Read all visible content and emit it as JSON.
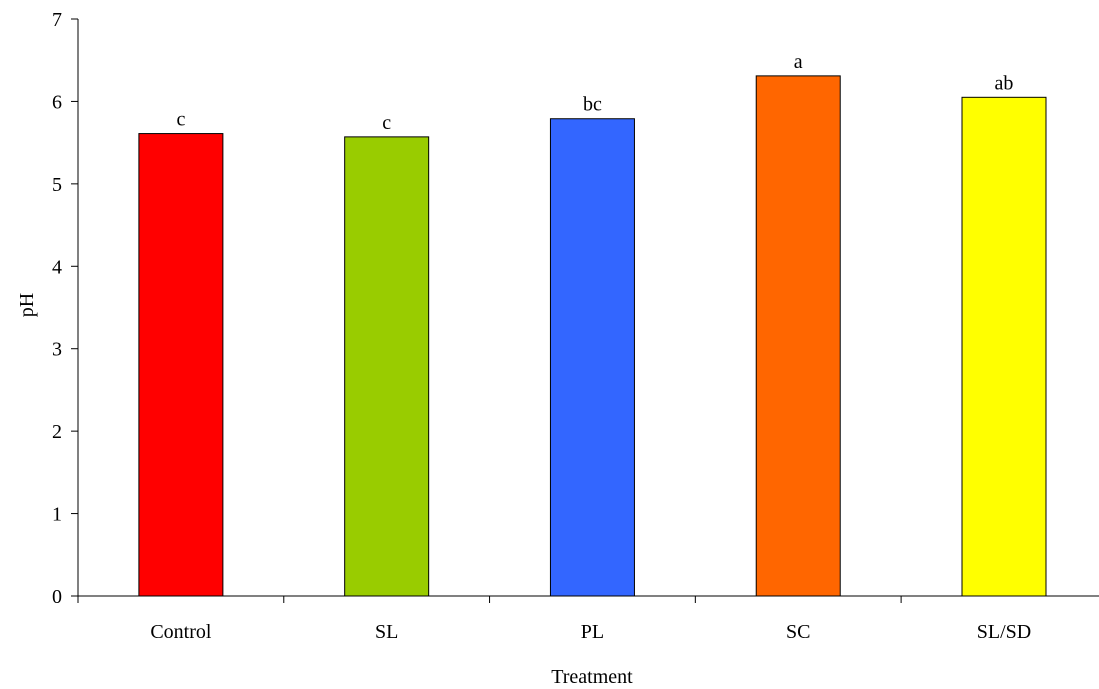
{
  "chart_data": {
    "type": "bar",
    "title": "",
    "xlabel": "Treatment",
    "ylabel": "pH",
    "ylim": [
      0,
      7
    ],
    "yticks": [
      "0",
      "1",
      "2",
      "3",
      "4",
      "5",
      "6",
      "7"
    ],
    "grid": false,
    "legend": "none",
    "categories": [
      "Control",
      "SL",
      "PL",
      "SC",
      "SL/SD"
    ],
    "values": [
      5.61,
      5.57,
      5.79,
      6.31,
      6.05
    ],
    "letters": [
      "c",
      "c",
      "bc",
      "a",
      "ab"
    ],
    "colors": [
      "#ff0000",
      "#99cc00",
      "#3366ff",
      "#ff6600",
      "#ffff00"
    ]
  }
}
